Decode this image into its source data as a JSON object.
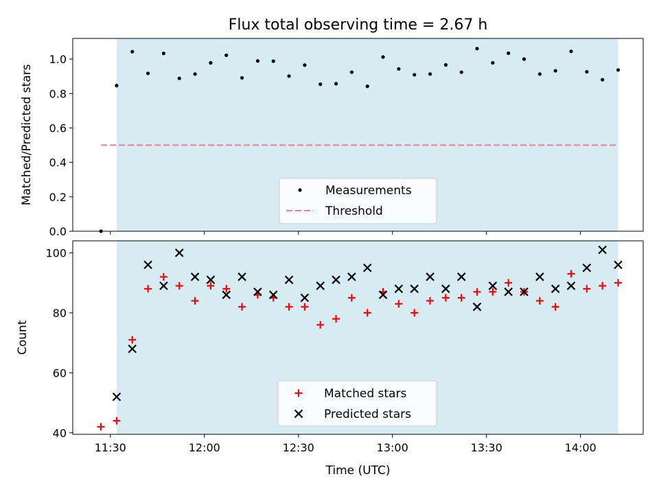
{
  "chart_data": [
    {
      "type": "scatter",
      "panel": "top",
      "title": "Flux total observing time = 2.67 h",
      "xlabel": "",
      "ylabel": "Matched/Predicted stars",
      "ylim": [
        0,
        1.12
      ],
      "yticks": [
        0.0,
        0.2,
        0.4,
        0.6,
        0.8,
        1.0
      ],
      "ytick_labels": [
        "0.0",
        "0.2",
        "0.4",
        "0.6",
        "0.8",
        "1.0"
      ],
      "shaded_region": {
        "start_min": 692,
        "end_min": 852,
        "color": "#add8e6"
      },
      "threshold": {
        "name": "Threshold",
        "value": 0.5,
        "x_start_min": 687,
        "x_end_min": 852,
        "color": "#f08080",
        "style": "dashed"
      },
      "series": [
        {
          "name": "Measurements",
          "color": "#000000",
          "marker": "dot",
          "x_min": [
            687,
            692,
            697,
            702,
            707,
            712,
            717,
            722,
            727,
            732,
            737,
            742,
            747,
            752,
            757,
            762,
            767,
            772,
            777,
            782,
            787,
            792,
            797,
            802,
            807,
            812,
            817,
            822,
            827,
            832,
            837,
            842,
            847,
            852
          ],
          "values": [
            0.0,
            0.846,
            1.043,
            0.917,
            1.033,
            0.888,
            0.913,
            0.978,
            1.022,
            0.891,
            0.989,
            0.988,
            0.901,
            0.965,
            0.854,
            0.857,
            0.924,
            0.842,
            1.012,
            0.943,
            0.909,
            0.913,
            0.966,
            0.924,
            1.061,
            0.978,
            1.034,
            1.0,
            0.913,
            0.932,
            1.045,
            0.926,
            0.88,
            0.937
          ]
        }
      ],
      "legend": {
        "position": "lower-center"
      }
    },
    {
      "type": "scatter",
      "panel": "bottom",
      "title": "",
      "xlabel": "Time (UTC)",
      "ylabel": "Count",
      "xlim_min": [
        678,
        860
      ],
      "ylim": [
        39.5,
        104
      ],
      "yticks": [
        40,
        60,
        80,
        100
      ],
      "ytick_labels": [
        "40",
        "60",
        "80",
        "100"
      ],
      "xticks_min": [
        690,
        720,
        750,
        780,
        810,
        840
      ],
      "xtick_labels": [
        "11:30",
        "12:00",
        "12:30",
        "13:00",
        "13:30",
        "14:00"
      ],
      "shaded_region": {
        "start_min": 692,
        "end_min": 852,
        "color": "#add8e6"
      },
      "series": [
        {
          "name": "Matched stars",
          "color": "#ff0000",
          "marker": "plus",
          "x_min": [
            687,
            692,
            697,
            702,
            707,
            712,
            717,
            722,
            727,
            732,
            737,
            742,
            747,
            752,
            757,
            762,
            767,
            772,
            777,
            782,
            787,
            792,
            797,
            802,
            807,
            812,
            817,
            822,
            827,
            832,
            837,
            842,
            847,
            852
          ],
          "values": [
            42,
            44,
            71,
            88,
            92,
            89,
            84,
            89,
            88,
            82,
            86,
            85,
            82,
            82,
            76,
            78,
            85,
            80,
            87,
            83,
            80,
            84,
            85,
            85,
            87,
            87,
            90,
            87,
            84,
            82,
            93,
            88,
            89,
            90
          ]
        },
        {
          "name": "Predicted stars",
          "color": "#000000",
          "marker": "x",
          "x_min": [
            692,
            697,
            702,
            707,
            712,
            717,
            722,
            727,
            732,
            737,
            742,
            747,
            752,
            757,
            762,
            767,
            772,
            777,
            782,
            787,
            792,
            797,
            802,
            807,
            812,
            817,
            822,
            827,
            832,
            837,
            842,
            847,
            852
          ],
          "values": [
            52,
            68,
            96,
            89,
            100,
            92,
            91,
            86,
            92,
            87,
            86,
            91,
            85,
            89,
            91,
            92,
            95,
            86,
            88,
            88,
            92,
            88,
            92,
            82,
            89,
            87,
            87,
            92,
            88,
            89,
            95,
            101,
            96
          ]
        }
      ],
      "legend": {
        "position": "lower-center"
      }
    }
  ]
}
